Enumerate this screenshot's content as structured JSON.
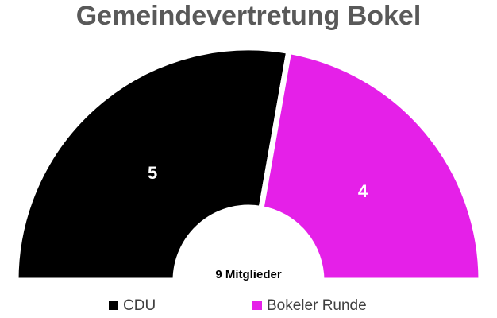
{
  "chart_data": {
    "type": "donut",
    "title": "Gemeindevertretung Bokel",
    "categories": [
      "CDU",
      "Bokeler Runde"
    ],
    "values": [
      5,
      4
    ],
    "colors": [
      "#000000",
      "#e520e8"
    ],
    "center_label": "9 Mitglieder"
  }
}
